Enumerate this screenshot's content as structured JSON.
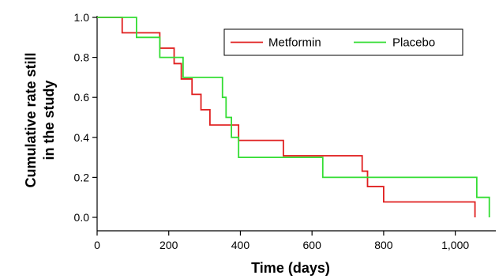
{
  "chart_data": {
    "type": "line",
    "step": true,
    "xlabel": "Time (days)",
    "ylabel_lines": [
      "Cumulative rate still",
      "in the study"
    ],
    "xlim": [
      0,
      1100
    ],
    "ylim": [
      0,
      1.0
    ],
    "x_ticks": [
      0,
      200,
      400,
      600,
      800,
      1000
    ],
    "x_tick_labels": [
      "0",
      "200",
      "400",
      "600",
      "800",
      "1,000"
    ],
    "y_ticks": [
      0,
      0.2,
      0.4,
      0.6,
      0.8,
      1.0
    ],
    "y_tick_labels": [
      "0.0",
      "0.2",
      "0.4",
      "0.6",
      "0.8",
      "1.0"
    ],
    "grid": false,
    "legend_position": "top-right",
    "series": [
      {
        "name": "Metformin",
        "color": "#e02020",
        "x": [
          0,
          70,
          175,
          215,
          235,
          265,
          290,
          315,
          395,
          520,
          740,
          755,
          800,
          1055
        ],
        "y": [
          1.0,
          0.923,
          0.846,
          0.769,
          0.692,
          0.615,
          0.538,
          0.462,
          0.385,
          0.308,
          0.231,
          0.154,
          0.077,
          0.0
        ]
      },
      {
        "name": "Placebo",
        "color": "#33dd33",
        "x": [
          0,
          110,
          175,
          240,
          350,
          360,
          375,
          395,
          630,
          1060,
          1095
        ],
        "y": [
          1.0,
          0.9,
          0.8,
          0.7,
          0.6,
          0.5,
          0.4,
          0.3,
          0.2,
          0.1,
          0.0
        ]
      }
    ]
  }
}
